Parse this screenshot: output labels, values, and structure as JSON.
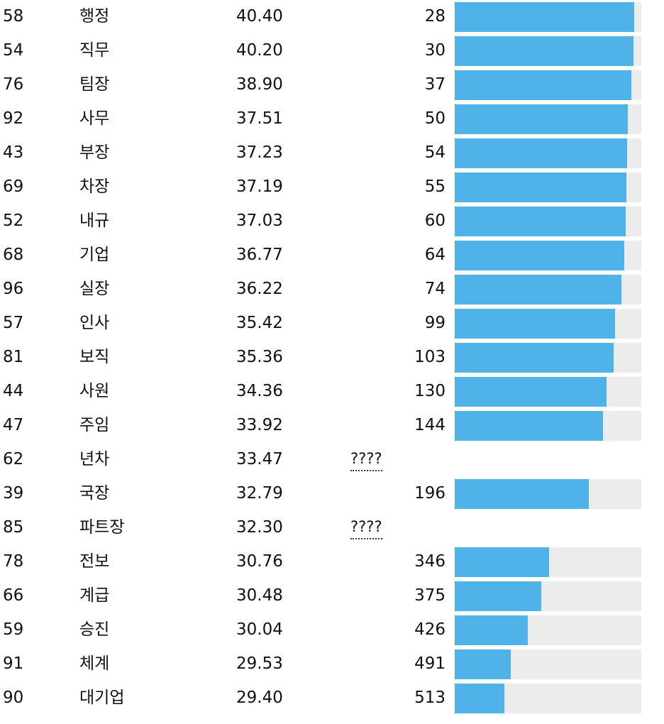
{
  "colors": {
    "bar": "#4fb2e8",
    "track": "#ececec",
    "text": "#111111"
  },
  "chart_data": {
    "type": "table",
    "columns": [
      "id",
      "word",
      "score",
      "rank"
    ],
    "bar_max_rank": 700,
    "rows": [
      {
        "id": "58",
        "word": "행정",
        "score": "40.40",
        "rank": "28"
      },
      {
        "id": "54",
        "word": "직무",
        "score": "40.20",
        "rank": "30"
      },
      {
        "id": "76",
        "word": "팀장",
        "score": "38.90",
        "rank": "37"
      },
      {
        "id": "92",
        "word": "사무",
        "score": "37.51",
        "rank": "50"
      },
      {
        "id": "43",
        "word": "부장",
        "score": "37.23",
        "rank": "54"
      },
      {
        "id": "69",
        "word": "차장",
        "score": "37.19",
        "rank": "55"
      },
      {
        "id": "52",
        "word": "내규",
        "score": "37.03",
        "rank": "60"
      },
      {
        "id": "68",
        "word": "기업",
        "score": "36.77",
        "rank": "64"
      },
      {
        "id": "96",
        "word": "실장",
        "score": "36.22",
        "rank": "74"
      },
      {
        "id": "57",
        "word": "인사",
        "score": "35.42",
        "rank": "99"
      },
      {
        "id": "81",
        "word": "보직",
        "score": "35.36",
        "rank": "103"
      },
      {
        "id": "44",
        "word": "사원",
        "score": "34.36",
        "rank": "130"
      },
      {
        "id": "47",
        "word": "주임",
        "score": "33.92",
        "rank": "144"
      },
      {
        "id": "62",
        "word": "년차",
        "score": "33.47",
        "rank": null,
        "missing": "????"
      },
      {
        "id": "39",
        "word": "국장",
        "score": "32.79",
        "rank": "196"
      },
      {
        "id": "85",
        "word": "파트장",
        "score": "32.30",
        "rank": null,
        "missing": "????"
      },
      {
        "id": "78",
        "word": "전보",
        "score": "30.76",
        "rank": "346"
      },
      {
        "id": "66",
        "word": "계급",
        "score": "30.48",
        "rank": "375"
      },
      {
        "id": "59",
        "word": "승진",
        "score": "30.04",
        "rank": "426"
      },
      {
        "id": "91",
        "word": "체계",
        "score": "29.53",
        "rank": "491"
      },
      {
        "id": "90",
        "word": "대기업",
        "score": "29.40",
        "rank": "513"
      }
    ]
  }
}
